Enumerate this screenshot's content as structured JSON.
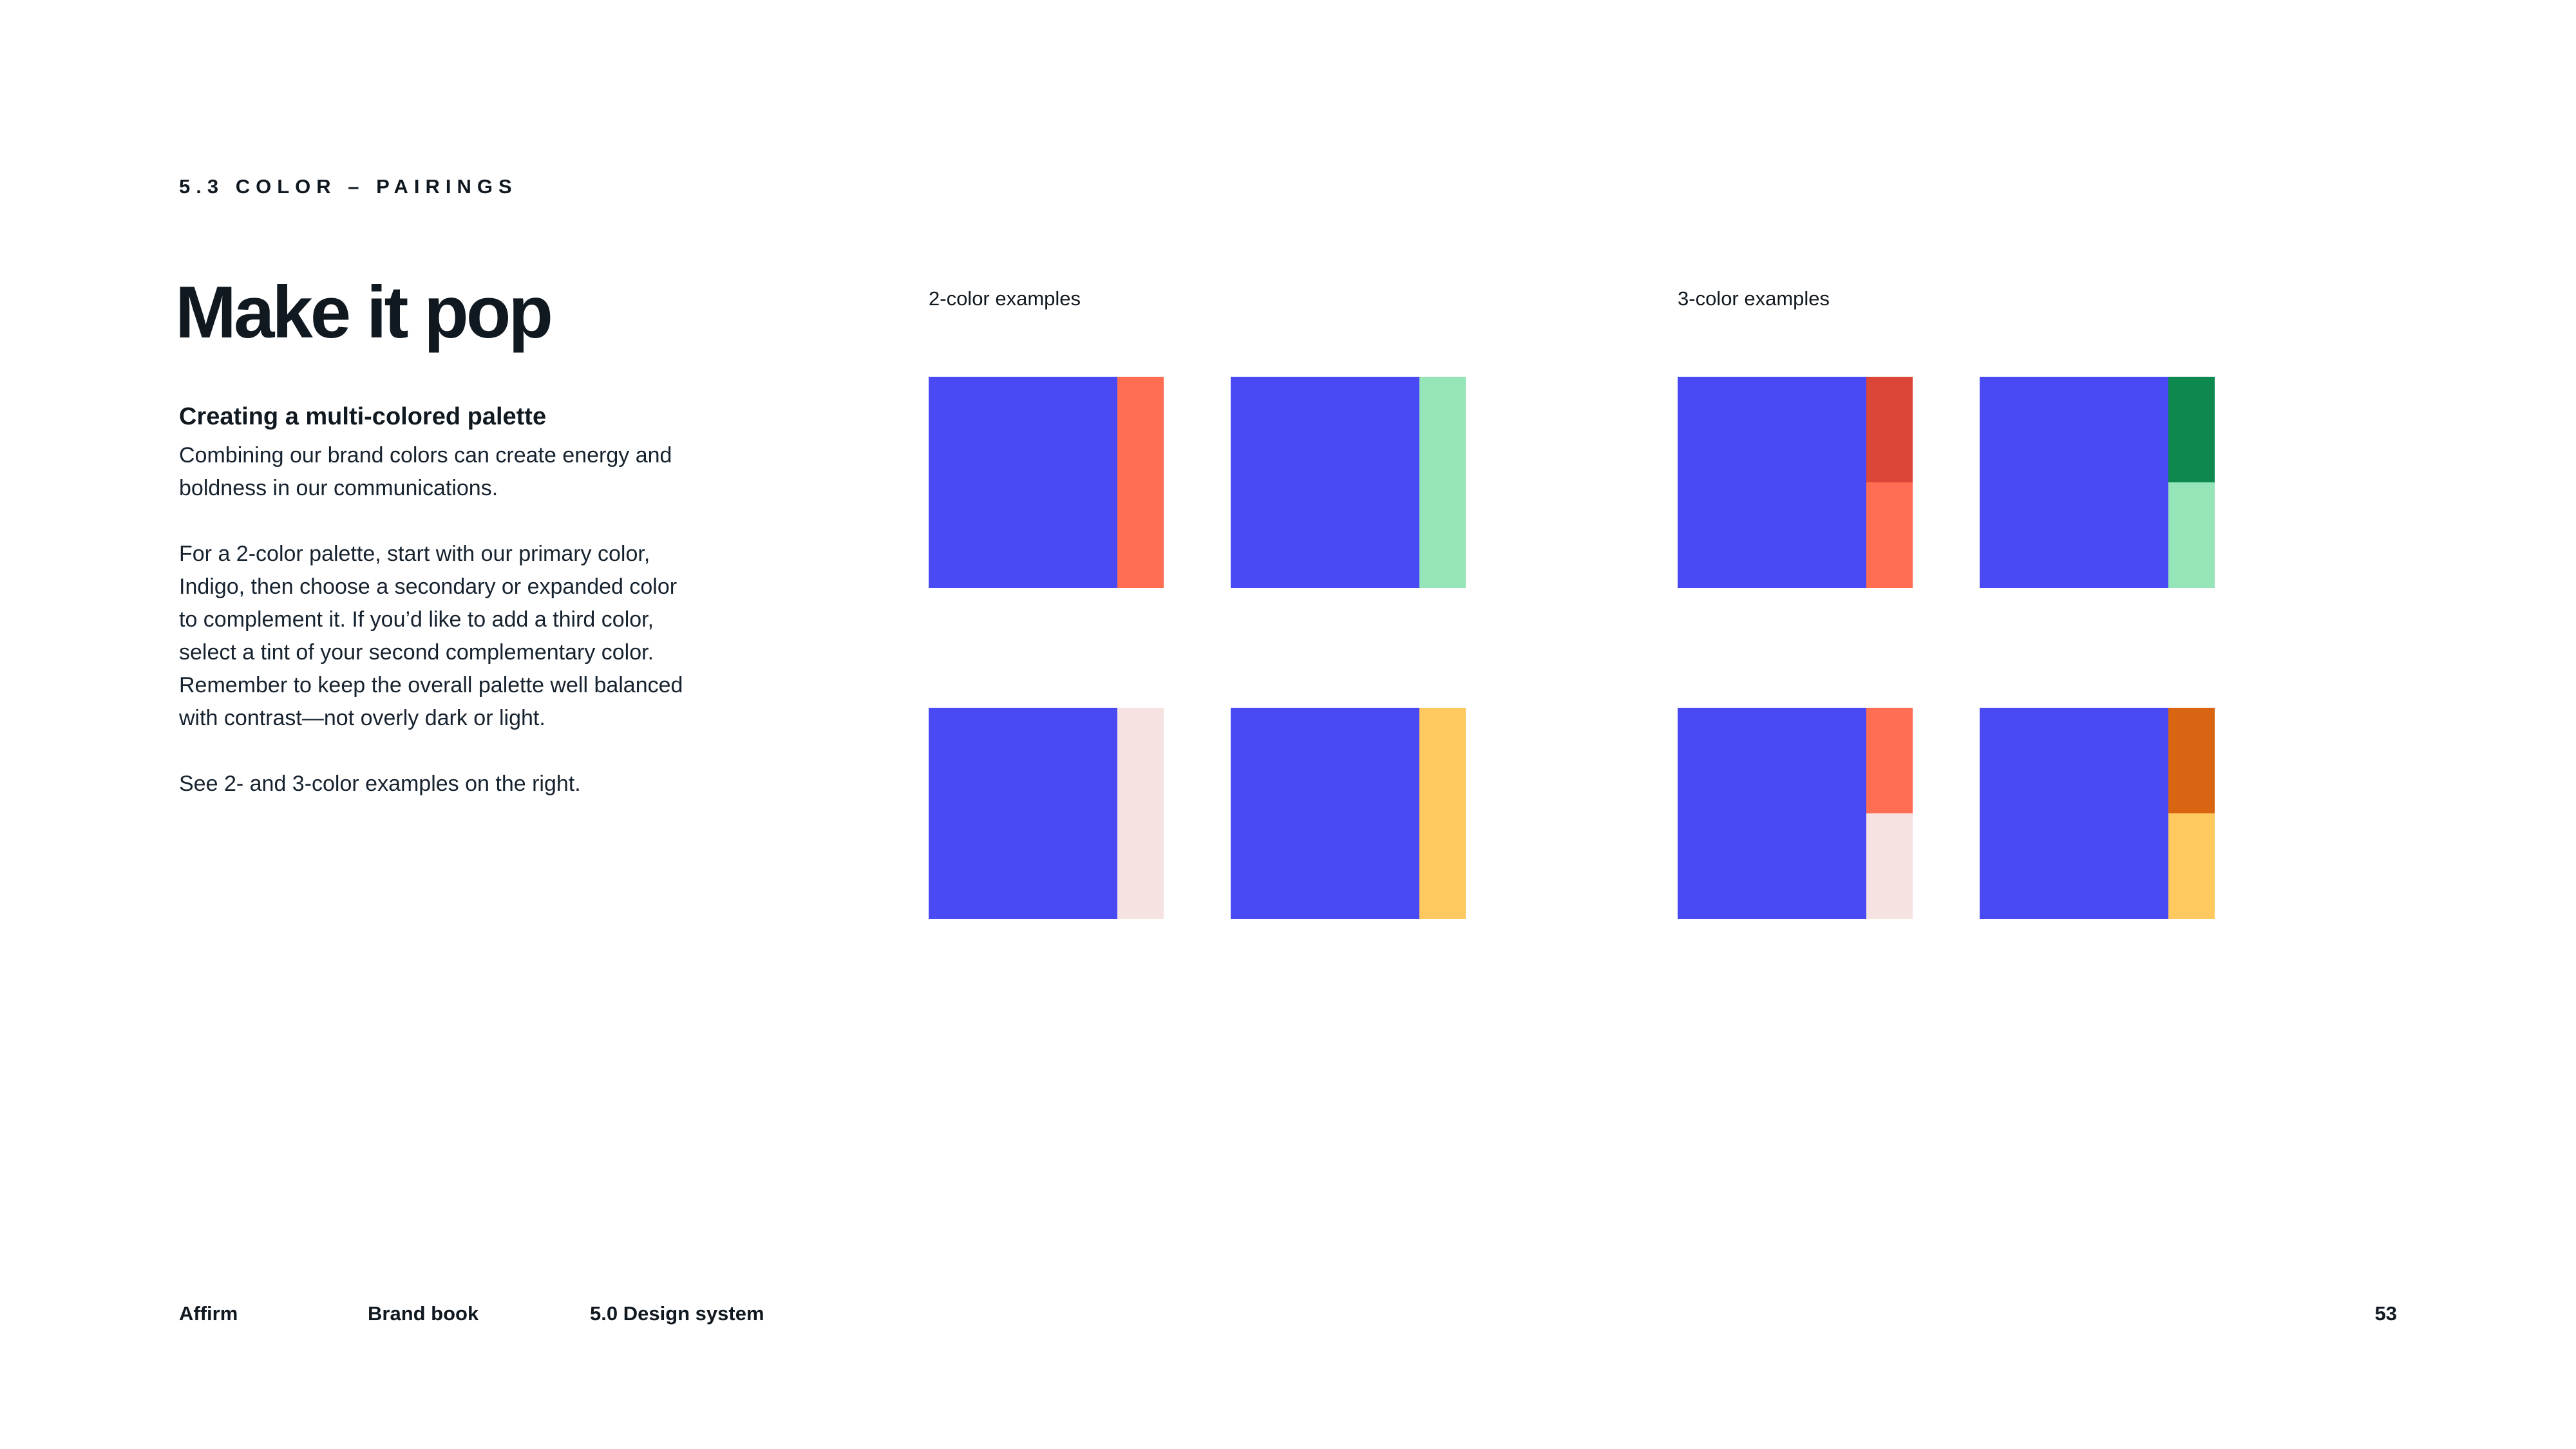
{
  "page": {
    "eyebrow": "5.3 COLOR – PAIRINGS",
    "title": "Make it pop",
    "subhead": "Creating a multi-colored palette",
    "paragraphs": {
      "p1": [
        "Combining our brand colors can create energy and",
        "boldness in our communications."
      ],
      "p2": [
        "For a 2-color palette, start with our primary color,",
        "Indigo, then choose a secondary or expanded color",
        "to complement it. If you’d like to add a third color,",
        "select a tint of your second complementary color.",
        "Remember to keep the overall palette well balanced",
        "with contrast—not overly dark or light."
      ],
      "p3": [
        "See 2- and 3-color examples on the right."
      ]
    }
  },
  "examples": {
    "two_color": {
      "label": "2-color examples",
      "swatches": [
        {
          "name": "indigo + coral",
          "base": "#4A4AF4",
          "accents": [
            "#FF6E52"
          ]
        },
        {
          "name": "indigo + seafoam",
          "base": "#4A4AF4",
          "accents": [
            "#95E5B8"
          ]
        },
        {
          "name": "indigo + pale pink",
          "base": "#4A4AF4",
          "accents": [
            "#F7E2E2"
          ]
        },
        {
          "name": "indigo + gold",
          "base": "#4A4AF4",
          "accents": [
            "#FFC95F"
          ]
        }
      ]
    },
    "three_color": {
      "label": "3-color examples",
      "swatches": [
        {
          "name": "indigo + red + coral",
          "base": "#4A4AF4",
          "accents": [
            "#DC4638",
            "#FF6E52"
          ]
        },
        {
          "name": "indigo + green + seafoam",
          "base": "#4A4AF4",
          "accents": [
            "#0D8950",
            "#95E5B8"
          ]
        },
        {
          "name": "indigo + coral + pale pink",
          "base": "#4A4AF4",
          "accents": [
            "#FF6E52",
            "#F7E2E2"
          ]
        },
        {
          "name": "indigo + dark orange + gold",
          "base": "#4A4AF4",
          "accents": [
            "#D96512",
            "#FFC95F"
          ]
        }
      ]
    }
  },
  "footer": {
    "brand": "Affirm",
    "book": "Brand book",
    "section": "5.0 Design system",
    "page_number": "53"
  },
  "colors": {
    "background": "#FFFFFF",
    "text": "#101820",
    "indigo": "#4A4AF4",
    "coral": "#FF6E52",
    "red": "#DC4638",
    "green": "#0D8950",
    "seafoam": "#95E5B8",
    "pale_pink": "#F7E2E2",
    "gold": "#FFC95F",
    "dark_orange": "#D96512"
  }
}
